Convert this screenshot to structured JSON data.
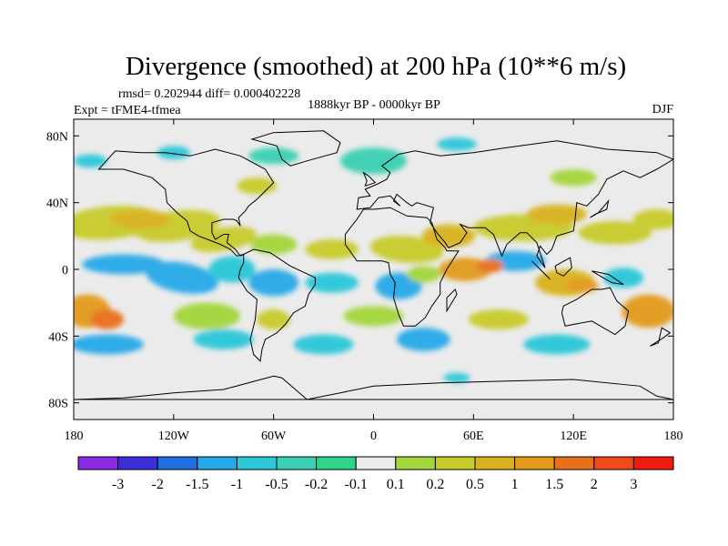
{
  "title": "Divergence (smoothed) at 200 hPa (10**6 m/s)",
  "stats_line": "rmsd= 0.202944 diff= 0.000402228",
  "experiment_label": "Expt = tFME4-tfmea",
  "period_label": "1888kyr BP - 0000kyr BP",
  "season_label": "DJF",
  "map": {
    "projection": "cylindrical-equidistant",
    "lon_range": [
      -180,
      180
    ],
    "lat_range": [
      -90,
      90
    ],
    "background_color": "#ebebeb",
    "coastline_color": "#000000",
    "lat_ticks": [
      {
        "value": 80,
        "label": "80N"
      },
      {
        "value": 40,
        "label": "40N"
      },
      {
        "value": 0,
        "label": "0"
      },
      {
        "value": -40,
        "label": "40S"
      },
      {
        "value": -80,
        "label": "80S"
      }
    ],
    "lon_ticks": [
      {
        "value": -180,
        "label": "180"
      },
      {
        "value": -120,
        "label": "120W"
      },
      {
        "value": -60,
        "label": "60W"
      },
      {
        "value": 0,
        "label": "0"
      },
      {
        "value": 60,
        "label": "60E"
      },
      {
        "value": 120,
        "label": "120E"
      },
      {
        "value": 180,
        "label": "180"
      }
    ]
  },
  "colorbar": {
    "colors": [
      "#8a2be2",
      "#3a2fd8",
      "#1f6fe0",
      "#25a9e8",
      "#2cc7d9",
      "#3ad0b4",
      "#2fd48a",
      "#ebebeb",
      "#a3d63a",
      "#c8cb2a",
      "#d9b21f",
      "#e39a1a",
      "#e86f1b",
      "#ee4a1a",
      "#f11a10"
    ],
    "labels": [
      "-3",
      "-2",
      "-1.5",
      "-1",
      "-0.5",
      "-0.2",
      "-0.1",
      "0.1",
      "0.2",
      "0.5",
      "1",
      "1.5",
      "2",
      "3"
    ]
  },
  "chart_data": {
    "type": "heatmap",
    "variable": "Divergence (smoothed) at 200 hPa",
    "units": "10**6 m/s",
    "x": {
      "name": "longitude",
      "range": [
        -180,
        180
      ],
      "tick_labels": [
        "180",
        "120W",
        "60W",
        "0",
        "60E",
        "120E",
        "180"
      ]
    },
    "y": {
      "name": "latitude",
      "range": [
        -90,
        90
      ],
      "tick_labels": [
        "80N",
        "40N",
        "0",
        "40S",
        "80S"
      ]
    },
    "color_levels": [
      -3,
      -2,
      -1.5,
      -1,
      -0.5,
      -0.2,
      -0.1,
      0.1,
      0.2,
      0.5,
      1,
      1.5,
      2,
      3
    ],
    "regions": [
      {
        "lon": [
          -160,
          180
        ],
        "lat": [
          20,
          35
        ],
        "category": "positive",
        "value": 0.5
      },
      {
        "lon": [
          -140,
          -40
        ],
        "lat": [
          5,
          20
        ],
        "category": "positive",
        "value": 0.5
      },
      {
        "lon": [
          -160,
          -40
        ],
        "lat": [
          -15,
          5
        ],
        "category": "negative",
        "value": -0.5
      },
      {
        "lon": [
          0,
          80
        ],
        "lat": [
          0,
          20
        ],
        "category": "positive",
        "value": 1
      },
      {
        "lon": [
          60,
          180
        ],
        "lat": [
          -15,
          10
        ],
        "category": "positive",
        "value": 1
      },
      {
        "lon": [
          -180,
          -150
        ],
        "lat": [
          -40,
          -15
        ],
        "category": "positive",
        "value": 1.5
      },
      {
        "lon": [
          150,
          180
        ],
        "lat": [
          -35,
          -15
        ],
        "category": "positive",
        "value": 1.5
      },
      {
        "lon": [
          -180,
          180
        ],
        "lat": [
          -60,
          -40
        ],
        "category": "negative",
        "value": -0.5
      },
      {
        "lon": [
          -120,
          60
        ],
        "lat": [
          60,
          80
        ],
        "category": "negative",
        "value": -0.2
      }
    ]
  }
}
